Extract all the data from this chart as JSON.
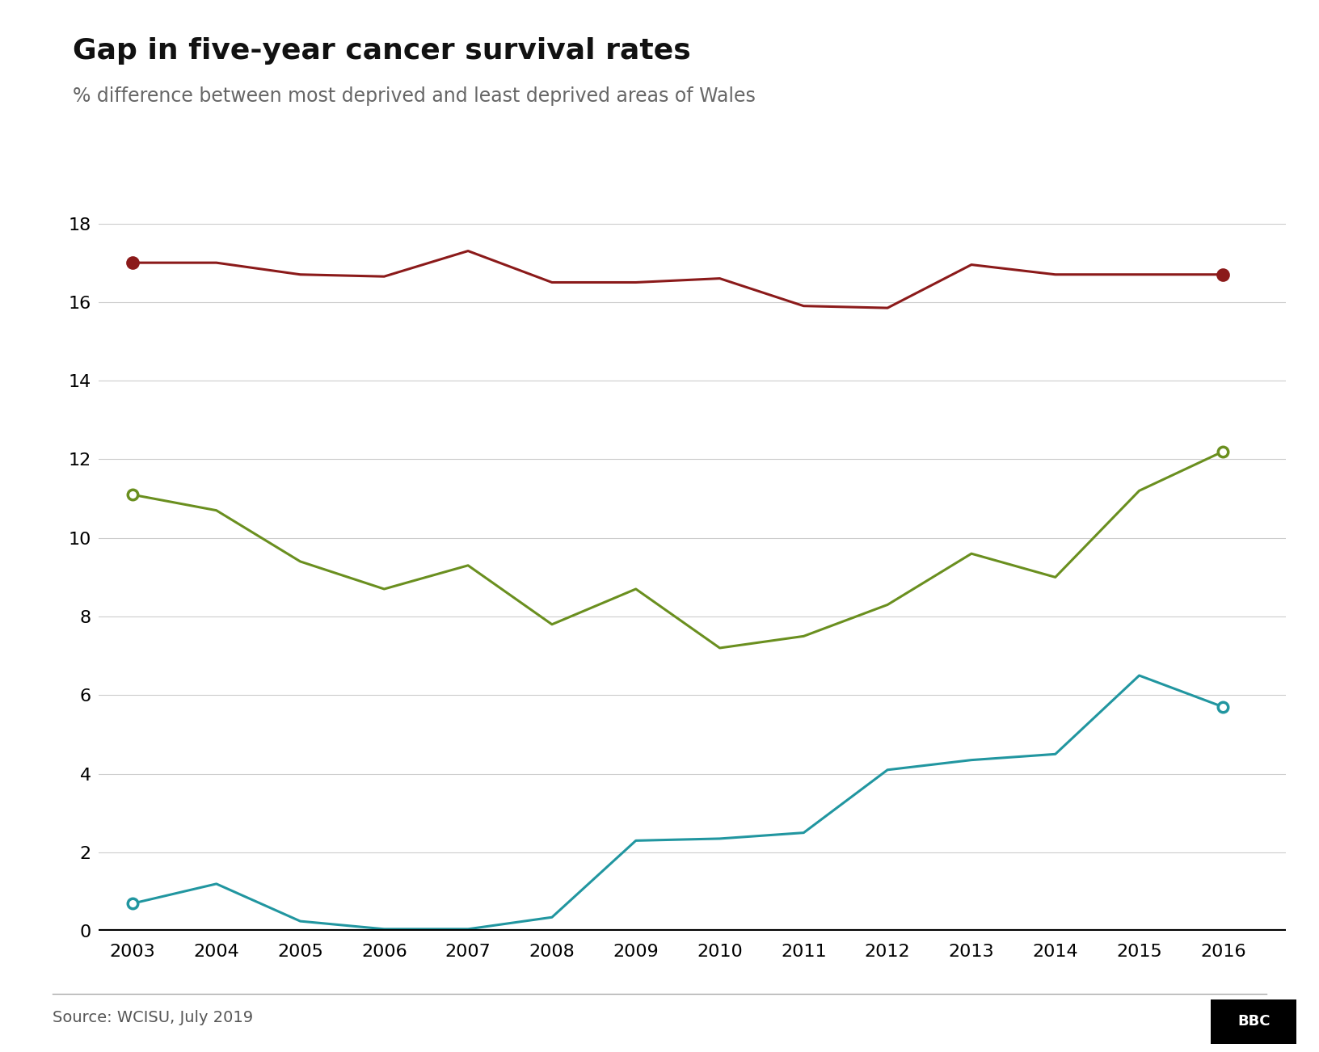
{
  "title": "Gap in five-year cancer survival rates",
  "subtitle": "% difference between most deprived and least deprived areas of Wales",
  "source": "Source: WCISU, July 2019",
  "years": [
    2003,
    2004,
    2005,
    2006,
    2007,
    2008,
    2009,
    2010,
    2011,
    2012,
    2013,
    2014,
    2015,
    2016
  ],
  "breast": [
    11.1,
    10.7,
    9.4,
    8.7,
    9.3,
    7.8,
    8.7,
    7.2,
    7.5,
    8.3,
    9.6,
    9.0,
    11.2,
    12.2
  ],
  "lung": [
    0.7,
    1.2,
    0.25,
    0.05,
    0.05,
    0.35,
    2.3,
    2.35,
    2.5,
    4.1,
    4.35,
    4.5,
    6.5,
    5.7
  ],
  "all": [
    17.0,
    17.0,
    16.7,
    16.65,
    17.3,
    16.5,
    16.5,
    16.6,
    15.9,
    15.85,
    16.95,
    16.7,
    16.7,
    16.7
  ],
  "breast_color": "#6a8f1f",
  "lung_color": "#2196a0",
  "all_color": "#8b1a1a",
  "background_color": "#ffffff",
  "ylim": [
    0,
    19
  ],
  "yticks": [
    0,
    2,
    4,
    6,
    8,
    10,
    12,
    14,
    16,
    18
  ],
  "title_fontsize": 26,
  "subtitle_fontsize": 17,
  "legend_fontsize": 16,
  "tick_fontsize": 16,
  "source_fontsize": 14
}
